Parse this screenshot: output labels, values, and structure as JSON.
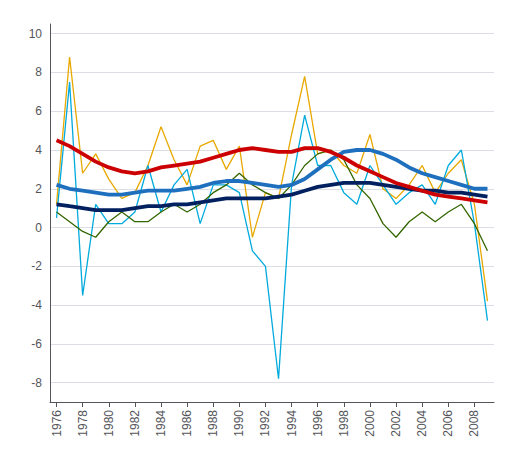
{
  "chart_data": {
    "type": "line",
    "x": [
      1976,
      1977,
      1978,
      1979,
      1980,
      1981,
      1982,
      1983,
      1984,
      1985,
      1986,
      1987,
      1988,
      1989,
      1990,
      1991,
      1992,
      1993,
      1994,
      1995,
      1996,
      1997,
      1998,
      1999,
      2000,
      2001,
      2002,
      2003,
      2004,
      2005,
      2006,
      2007,
      2008,
      2009
    ],
    "series": [
      {
        "color": "#E8A800",
        "values": [
          1.2,
          8.8,
          2.8,
          3.8,
          2.5,
          1.5,
          1.8,
          3.2,
          5.2,
          3.5,
          2.2,
          4.2,
          4.5,
          3.0,
          4.2,
          -0.5,
          1.8,
          1.5,
          4.8,
          7.8,
          3.8,
          4.0,
          3.2,
          2.8,
          4.8,
          2.0,
          1.5,
          2.2,
          3.2,
          1.8,
          2.8,
          3.5,
          1.2,
          -3.8
        ]
      },
      {
        "color": "#00AADD",
        "values": [
          0.5,
          7.5,
          -3.5,
          1.2,
          0.2,
          0.2,
          0.8,
          3.2,
          0.8,
          2.2,
          3.0,
          0.2,
          2.2,
          2.2,
          1.8,
          -1.2,
          -2.0,
          -7.8,
          2.2,
          5.8,
          3.2,
          3.2,
          1.8,
          1.2,
          3.2,
          2.2,
          1.2,
          1.8,
          2.2,
          1.2,
          3.2,
          4.0,
          0.2,
          -4.8
        ]
      },
      {
        "color": "#336600",
        "values": [
          0.8,
          0.3,
          -0.2,
          -0.5,
          0.3,
          0.8,
          0.3,
          0.3,
          0.8,
          1.2,
          0.8,
          1.2,
          1.8,
          2.2,
          2.8,
          2.2,
          1.8,
          1.5,
          2.2,
          3.2,
          3.8,
          4.0,
          3.5,
          2.2,
          1.5,
          0.2,
          -0.5,
          0.3,
          0.8,
          0.3,
          0.8,
          1.2,
          0.2,
          -1.2
        ]
      },
      {
        "color": "#CC0000",
        "values": [
          4.5,
          4.2,
          3.8,
          3.4,
          3.1,
          2.9,
          2.8,
          2.9,
          3.1,
          3.2,
          3.3,
          3.4,
          3.6,
          3.8,
          4.0,
          4.1,
          4.0,
          3.9,
          3.9,
          4.1,
          4.1,
          3.9,
          3.6,
          3.2,
          2.9,
          2.6,
          2.3,
          2.1,
          1.9,
          1.7,
          1.6,
          1.5,
          1.4,
          1.3
        ]
      },
      {
        "color": "#1F6FBF",
        "values": [
          2.2,
          2.0,
          1.9,
          1.8,
          1.7,
          1.7,
          1.8,
          1.9,
          1.9,
          1.9,
          2.0,
          2.1,
          2.3,
          2.4,
          2.4,
          2.3,
          2.2,
          2.1,
          2.2,
          2.5,
          3.0,
          3.5,
          3.9,
          4.0,
          4.0,
          3.8,
          3.5,
          3.1,
          2.8,
          2.6,
          2.4,
          2.2,
          2.0,
          2.0
        ]
      },
      {
        "color": "#002060",
        "values": [
          1.2,
          1.1,
          1.0,
          0.9,
          0.9,
          0.9,
          1.0,
          1.1,
          1.1,
          1.2,
          1.2,
          1.3,
          1.4,
          1.5,
          1.5,
          1.5,
          1.5,
          1.6,
          1.7,
          1.9,
          2.1,
          2.2,
          2.3,
          2.3,
          2.3,
          2.2,
          2.1,
          2.0,
          1.9,
          1.9,
          1.8,
          1.8,
          1.7,
          1.6
        ]
      }
    ],
    "xlim": [
      1975.5,
      2009.5
    ],
    "xticks": [
      1976,
      1978,
      1980,
      1982,
      1984,
      1986,
      1988,
      1990,
      1992,
      1994,
      1996,
      1998,
      2000,
      2002,
      2004,
      2006,
      2008
    ],
    "ylim": [
      -9.0,
      10.5
    ],
    "yticks": [
      -8,
      -6,
      -4,
      -2,
      0,
      2,
      4,
      6,
      8,
      10
    ],
    "grid": true
  }
}
